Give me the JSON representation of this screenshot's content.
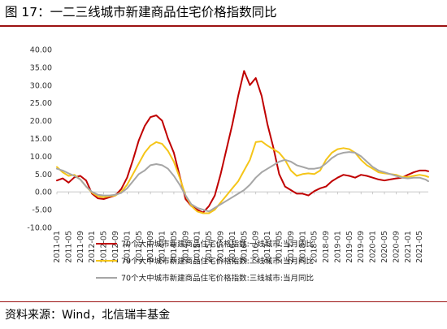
{
  "page": {
    "title": "图 17：一二三线城市新建商品住宅价格指数同比",
    "source": "资料来源：Wind，北信瑞丰基金",
    "accent_color": "#9c1212"
  },
  "chart_data": {
    "type": "line",
    "title": "",
    "xlabel": "",
    "ylabel": "",
    "ylim": [
      -10,
      40
    ],
    "yticks": [
      -10,
      -5,
      0,
      5,
      10,
      15,
      20,
      25,
      30,
      35,
      40
    ],
    "ytick_labels": [
      "-10.00",
      "-5.00",
      "0.00",
      "5.00",
      "10.00",
      "15.00",
      "20.00",
      "25.00",
      "30.00",
      "35.00",
      "40.00"
    ],
    "x_start": "2011-01",
    "x_end": "2021-08",
    "xtick_labels": [
      "2011-01",
      "2011-05",
      "2011-09",
      "2012-01",
      "2012-05",
      "2012-09",
      "2013-01",
      "2013-05",
      "2013-09",
      "2014-01",
      "2014-05",
      "2014-09",
      "2015-01",
      "2015-05",
      "2015-09",
      "2016-01",
      "2016-05",
      "2016-09",
      "2017-01",
      "2017-05",
      "2017-09",
      "2018-01",
      "2018-05",
      "2018-09",
      "2019-01",
      "2019-05",
      "2019-09",
      "2020-01",
      "2020-05",
      "2020-09",
      "2021-01",
      "2021-05"
    ],
    "grid": false,
    "legend_position": "bottom",
    "series": [
      {
        "name": "70个大中城市新建商品住宅价格指数:一线城市:当月同比",
        "color": "#c00000",
        "points": [
          [
            "2011-01",
            3.2
          ],
          [
            "2011-03",
            3.8
          ],
          [
            "2011-05",
            2.6
          ],
          [
            "2011-07",
            4.1
          ],
          [
            "2011-09",
            4.5
          ],
          [
            "2011-11",
            3.2
          ],
          [
            "2012-01",
            -0.5
          ],
          [
            "2012-03",
            -1.8
          ],
          [
            "2012-05",
            -2.0
          ],
          [
            "2012-07",
            -1.5
          ],
          [
            "2012-09",
            -1.0
          ],
          [
            "2012-11",
            0.8
          ],
          [
            "2013-01",
            4.0
          ],
          [
            "2013-03",
            9.0
          ],
          [
            "2013-05",
            14.5
          ],
          [
            "2013-07",
            18.5
          ],
          [
            "2013-09",
            21.0
          ],
          [
            "2013-11",
            21.5
          ],
          [
            "2014-01",
            20.0
          ],
          [
            "2014-03",
            15.0
          ],
          [
            "2014-05",
            11.0
          ],
          [
            "2014-07",
            4.5
          ],
          [
            "2014-09",
            -2.0
          ],
          [
            "2014-11",
            -4.0
          ],
          [
            "2015-01",
            -5.0
          ],
          [
            "2015-03",
            -5.8
          ],
          [
            "2015-05",
            -4.0
          ],
          [
            "2015-07",
            -1.0
          ],
          [
            "2015-09",
            5.0
          ],
          [
            "2015-11",
            12.0
          ],
          [
            "2016-01",
            19.0
          ],
          [
            "2016-03",
            27.0
          ],
          [
            "2016-05",
            34.0
          ],
          [
            "2016-07",
            30.0
          ],
          [
            "2016-09",
            32.0
          ],
          [
            "2016-11",
            27.0
          ],
          [
            "2017-01",
            19.0
          ],
          [
            "2017-03",
            12.5
          ],
          [
            "2017-05",
            5.0
          ],
          [
            "2017-07",
            1.5
          ],
          [
            "2017-09",
            0.5
          ],
          [
            "2017-11",
            -0.5
          ],
          [
            "2018-01",
            -0.5
          ],
          [
            "2018-03",
            -1.0
          ],
          [
            "2018-05",
            0.2
          ],
          [
            "2018-07",
            1.0
          ],
          [
            "2018-09",
            1.5
          ],
          [
            "2018-11",
            3.0
          ],
          [
            "2019-01",
            4.0
          ],
          [
            "2019-03",
            4.8
          ],
          [
            "2019-05",
            4.5
          ],
          [
            "2019-07",
            4.0
          ],
          [
            "2019-09",
            4.8
          ],
          [
            "2019-11",
            4.5
          ],
          [
            "2020-01",
            4.0
          ],
          [
            "2020-03",
            3.5
          ],
          [
            "2020-05",
            3.2
          ],
          [
            "2020-07",
            3.5
          ],
          [
            "2020-09",
            3.8
          ],
          [
            "2020-11",
            4.0
          ],
          [
            "2021-01",
            4.8
          ],
          [
            "2021-03",
            5.5
          ],
          [
            "2021-05",
            6.0
          ],
          [
            "2021-07",
            6.0
          ],
          [
            "2021-08",
            5.8
          ]
        ]
      },
      {
        "name": "70个大中城市新建商品住宅价格指数:二线城市:当月同比",
        "color": "#f5c518",
        "points": [
          [
            "2011-01",
            7.0
          ],
          [
            "2011-03",
            5.5
          ],
          [
            "2011-05",
            4.5
          ],
          [
            "2011-07",
            4.8
          ],
          [
            "2011-09",
            3.5
          ],
          [
            "2011-11",
            1.5
          ],
          [
            "2012-01",
            -0.2
          ],
          [
            "2012-03",
            -1.2
          ],
          [
            "2012-05",
            -1.5
          ],
          [
            "2012-07",
            -1.2
          ],
          [
            "2012-09",
            -1.0
          ],
          [
            "2012-11",
            0.0
          ],
          [
            "2013-01",
            2.0
          ],
          [
            "2013-03",
            5.0
          ],
          [
            "2013-05",
            8.0
          ],
          [
            "2013-07",
            11.0
          ],
          [
            "2013-09",
            13.0
          ],
          [
            "2013-11",
            14.0
          ],
          [
            "2014-01",
            13.5
          ],
          [
            "2014-03",
            11.5
          ],
          [
            "2014-05",
            8.5
          ],
          [
            "2014-07",
            4.0
          ],
          [
            "2014-09",
            -1.0
          ],
          [
            "2014-11",
            -4.0
          ],
          [
            "2015-01",
            -5.5
          ],
          [
            "2015-03",
            -6.0
          ],
          [
            "2015-05",
            -6.0
          ],
          [
            "2015-07",
            -5.0
          ],
          [
            "2015-09",
            -3.0
          ],
          [
            "2015-11",
            -1.0
          ],
          [
            "2016-01",
            1.0
          ],
          [
            "2016-03",
            3.0
          ],
          [
            "2016-05",
            6.0
          ],
          [
            "2016-07",
            9.0
          ],
          [
            "2016-09",
            14.0
          ],
          [
            "2016-11",
            14.2
          ],
          [
            "2017-01",
            13.0
          ],
          [
            "2017-03",
            12.0
          ],
          [
            "2017-05",
            11.0
          ],
          [
            "2017-07",
            9.0
          ],
          [
            "2017-09",
            6.0
          ],
          [
            "2017-11",
            4.5
          ],
          [
            "2018-01",
            5.0
          ],
          [
            "2018-03",
            5.2
          ],
          [
            "2018-05",
            5.0
          ],
          [
            "2018-07",
            6.0
          ],
          [
            "2018-09",
            9.0
          ],
          [
            "2018-11",
            11.0
          ],
          [
            "2019-01",
            12.0
          ],
          [
            "2019-03",
            12.3
          ],
          [
            "2019-05",
            12.0
          ],
          [
            "2019-07",
            11.0
          ],
          [
            "2019-09",
            9.0
          ],
          [
            "2019-11",
            7.5
          ],
          [
            "2020-01",
            6.5
          ],
          [
            "2020-03",
            5.5
          ],
          [
            "2020-05",
            5.2
          ],
          [
            "2020-07",
            5.0
          ],
          [
            "2020-09",
            4.8
          ],
          [
            "2020-11",
            4.2
          ],
          [
            "2021-01",
            4.2
          ],
          [
            "2021-03",
            4.5
          ],
          [
            "2021-05",
            4.8
          ],
          [
            "2021-07",
            4.5
          ],
          [
            "2021-08",
            4.2
          ]
        ]
      },
      {
        "name": "70个大中城市新建商品住宅价格指数:三线城市:当月同比",
        "color": "#a6a6a6",
        "points": [
          [
            "2011-01",
            6.5
          ],
          [
            "2011-03",
            6.0
          ],
          [
            "2011-05",
            5.2
          ],
          [
            "2011-07",
            4.5
          ],
          [
            "2011-09",
            3.5
          ],
          [
            "2011-11",
            1.5
          ],
          [
            "2012-01",
            0.0
          ],
          [
            "2012-03",
            -0.8
          ],
          [
            "2012-05",
            -1.0
          ],
          [
            "2012-07",
            -1.0
          ],
          [
            "2012-09",
            -0.8
          ],
          [
            "2012-11",
            -0.3
          ],
          [
            "2013-01",
            1.0
          ],
          [
            "2013-03",
            3.0
          ],
          [
            "2013-05",
            5.0
          ],
          [
            "2013-07",
            6.0
          ],
          [
            "2013-09",
            7.5
          ],
          [
            "2013-11",
            7.8
          ],
          [
            "2014-01",
            7.5
          ],
          [
            "2014-03",
            6.5
          ],
          [
            "2014-05",
            4.5
          ],
          [
            "2014-07",
            2.0
          ],
          [
            "2014-09",
            -1.0
          ],
          [
            "2014-11",
            -3.5
          ],
          [
            "2015-01",
            -4.5
          ],
          [
            "2015-03",
            -5.0
          ],
          [
            "2015-05",
            -5.5
          ],
          [
            "2015-07",
            -4.5
          ],
          [
            "2015-09",
            -3.5
          ],
          [
            "2015-11",
            -2.5
          ],
          [
            "2016-01",
            -1.5
          ],
          [
            "2016-03",
            -0.5
          ],
          [
            "2016-05",
            0.5
          ],
          [
            "2016-07",
            2.0
          ],
          [
            "2016-09",
            4.0
          ],
          [
            "2016-11",
            5.5
          ],
          [
            "2017-01",
            6.5
          ],
          [
            "2017-03",
            7.5
          ],
          [
            "2017-05",
            8.5
          ],
          [
            "2017-07",
            9.0
          ],
          [
            "2017-09",
            8.5
          ],
          [
            "2017-11",
            7.5
          ],
          [
            "2018-01",
            7.0
          ],
          [
            "2018-03",
            6.5
          ],
          [
            "2018-05",
            6.5
          ],
          [
            "2018-07",
            6.8
          ],
          [
            "2018-09",
            8.0
          ],
          [
            "2018-11",
            9.5
          ],
          [
            "2019-01",
            10.5
          ],
          [
            "2019-03",
            11.0
          ],
          [
            "2019-05",
            11.2
          ],
          [
            "2019-07",
            11.0
          ],
          [
            "2019-09",
            10.0
          ],
          [
            "2019-11",
            8.5
          ],
          [
            "2020-01",
            7.0
          ],
          [
            "2020-03",
            6.0
          ],
          [
            "2020-05",
            5.5
          ],
          [
            "2020-07",
            5.0
          ],
          [
            "2020-09",
            4.5
          ],
          [
            "2020-11",
            4.0
          ],
          [
            "2021-01",
            3.8
          ],
          [
            "2021-03",
            4.0
          ],
          [
            "2021-05",
            4.0
          ],
          [
            "2021-07",
            3.5
          ],
          [
            "2021-08",
            3.0
          ]
        ]
      }
    ]
  }
}
